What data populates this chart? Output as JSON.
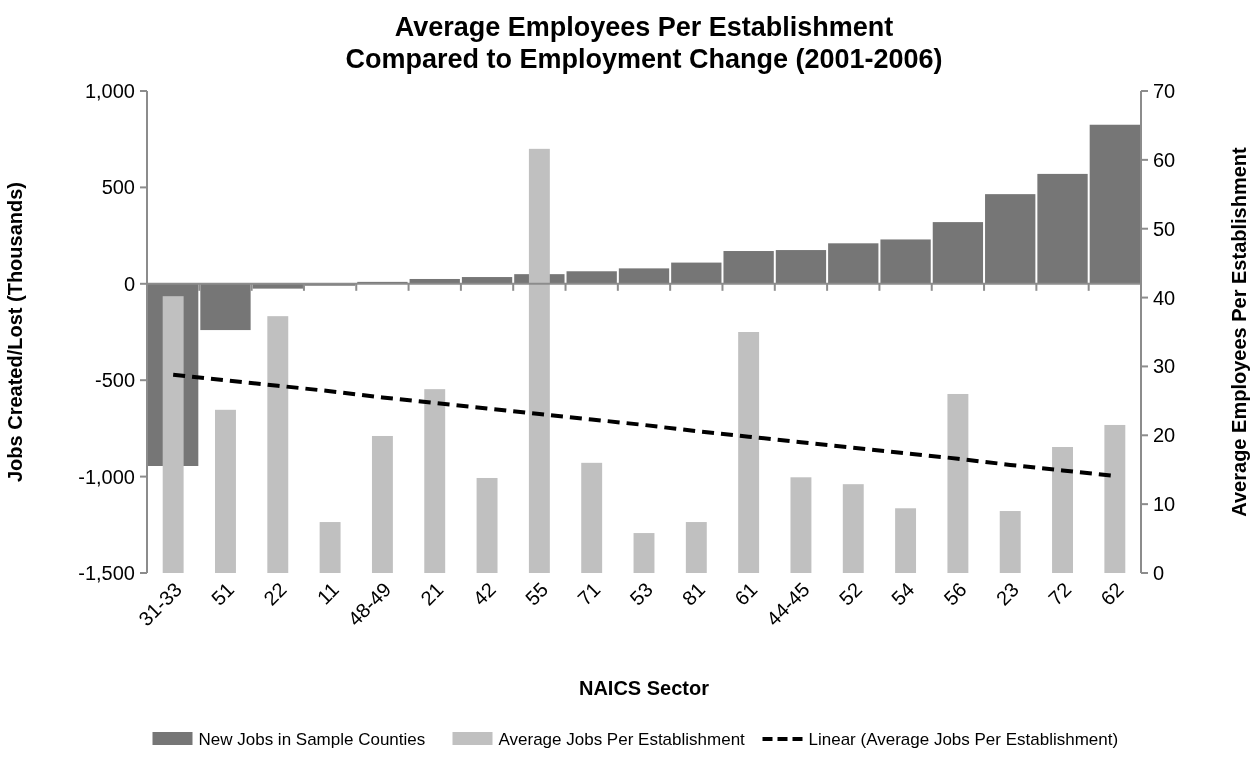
{
  "chart_data": {
    "type": "bar",
    "title": "Average Employees Per Establishment\nCompared to Employment Change (2001-2006)",
    "xlabel": "NAICS Sector",
    "ylabel": "Jobs Created/Lost (Thousands)",
    "y2label": "Average Employees Per Establishment",
    "categories": [
      "31-33",
      "51",
      "22",
      "11",
      "48-49",
      "21",
      "42",
      "55",
      "71",
      "53",
      "81",
      "61",
      "44-45",
      "52",
      "54",
      "56",
      "23",
      "72",
      "62"
    ],
    "series": [
      {
        "name": "New Jobs in Sample Counties",
        "color": "#767676",
        "values": [
          -945,
          -240,
          -25,
          -10,
          10,
          25,
          35,
          50,
          65,
          80,
          110,
          170,
          175,
          210,
          230,
          320,
          465,
          570,
          825
        ]
      },
      {
        "name": "Average Jobs Per Establishment",
        "axis": "y2",
        "color": "#c0c0c0",
        "values": [
          40.2,
          23.7,
          37.3,
          7.4,
          19.9,
          26.7,
          13.8,
          61.6,
          16.0,
          5.8,
          7.4,
          35.0,
          13.9,
          12.9,
          9.4,
          26.0,
          9.0,
          18.3,
          21.5
        ]
      },
      {
        "name": "Linear (Average Jobs Per Establishment)",
        "type": "line",
        "axis": "y2",
        "color": "#000000",
        "line_style": "dashed",
        "marker": "none",
        "values": [
          28.8,
          28.0,
          27.2,
          26.4,
          25.5,
          24.7,
          23.9,
          23.1,
          22.3,
          21.5,
          20.6,
          19.8,
          19.0,
          18.2,
          17.4,
          16.6,
          15.7,
          14.9,
          14.1
        ]
      }
    ],
    "ylim": [
      -1500,
      1000
    ],
    "yticks": [
      {
        "value": -1500,
        "label": "-1,500"
      },
      {
        "value": -1000,
        "label": "-1,000"
      },
      {
        "value": -500,
        "label": "-500"
      },
      0,
      500,
      {
        "value": 1000,
        "label": "1,000"
      }
    ],
    "y2lim": [
      0,
      70
    ],
    "y2ticks": [
      0,
      10,
      20,
      30,
      40,
      50,
      60,
      70
    ],
    "legend": "bottom"
  }
}
